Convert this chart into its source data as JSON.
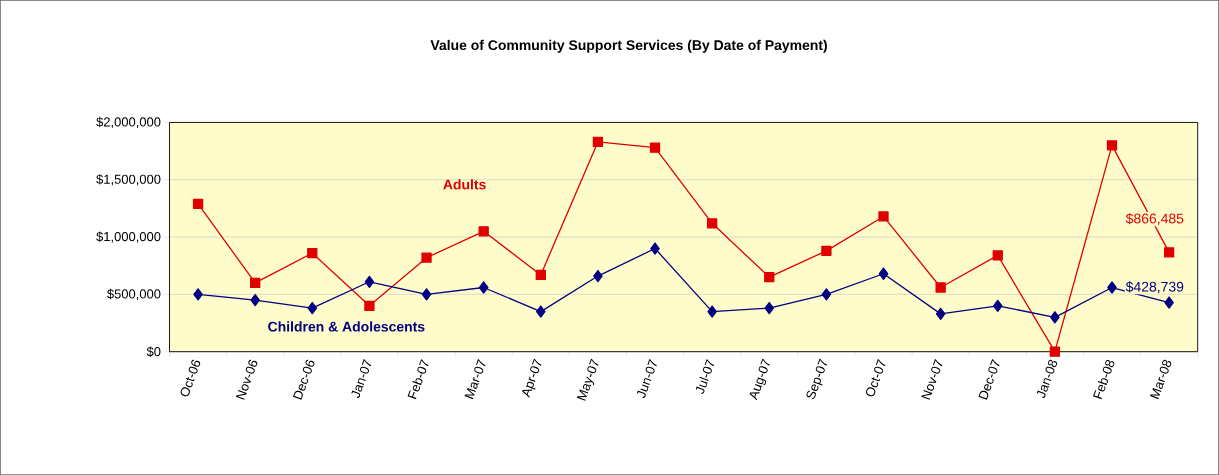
{
  "chart_data": {
    "type": "line",
    "title": "Value of Community Support Services (By Date of Payment)",
    "categories": [
      "Oct-06",
      "Nov-06",
      "Dec-06",
      "Jan-07",
      "Feb-07",
      "Mar-07",
      "Apr-07",
      "May-07",
      "Jun-07",
      "Jul-07",
      "Aug-07",
      "Sep-07",
      "Oct-07",
      "Nov-07",
      "Dec-07",
      "Jan-08",
      "Feb-08",
      "Mar-08"
    ],
    "series": [
      {
        "name": "Adults",
        "color": "#e00000",
        "marker": "square",
        "values": [
          1290000,
          600000,
          860000,
          400000,
          820000,
          1050000,
          670000,
          1830000,
          1780000,
          1120000,
          650000,
          880000,
          1180000,
          560000,
          840000,
          0,
          1800000,
          866485
        ],
        "value_labels": [
          null,
          null,
          null,
          null,
          null,
          null,
          null,
          null,
          null,
          null,
          null,
          null,
          null,
          null,
          null,
          null,
          null,
          "$866,485"
        ]
      },
      {
        "name": "Children & Adolescents",
        "color": "#000080",
        "marker": "diamond",
        "values": [
          500000,
          450000,
          380000,
          610000,
          500000,
          560000,
          350000,
          660000,
          900000,
          350000,
          380000,
          500000,
          680000,
          330000,
          400000,
          300000,
          560000,
          428739
        ],
        "value_labels": [
          null,
          null,
          null,
          null,
          null,
          null,
          null,
          null,
          null,
          null,
          null,
          null,
          null,
          null,
          null,
          null,
          null,
          "$428,739"
        ]
      }
    ],
    "ylim": [
      0,
      2000000
    ],
    "yticks": [
      {
        "value": 0,
        "label": "$0"
      },
      {
        "value": 500000,
        "label": "$500,000"
      },
      {
        "value": 1000000,
        "label": "$1,000,000"
      },
      {
        "value": 1500000,
        "label": "$1,500,000"
      },
      {
        "value": 2000000,
        "label": "$2,000,000"
      }
    ],
    "grid": "y"
  }
}
